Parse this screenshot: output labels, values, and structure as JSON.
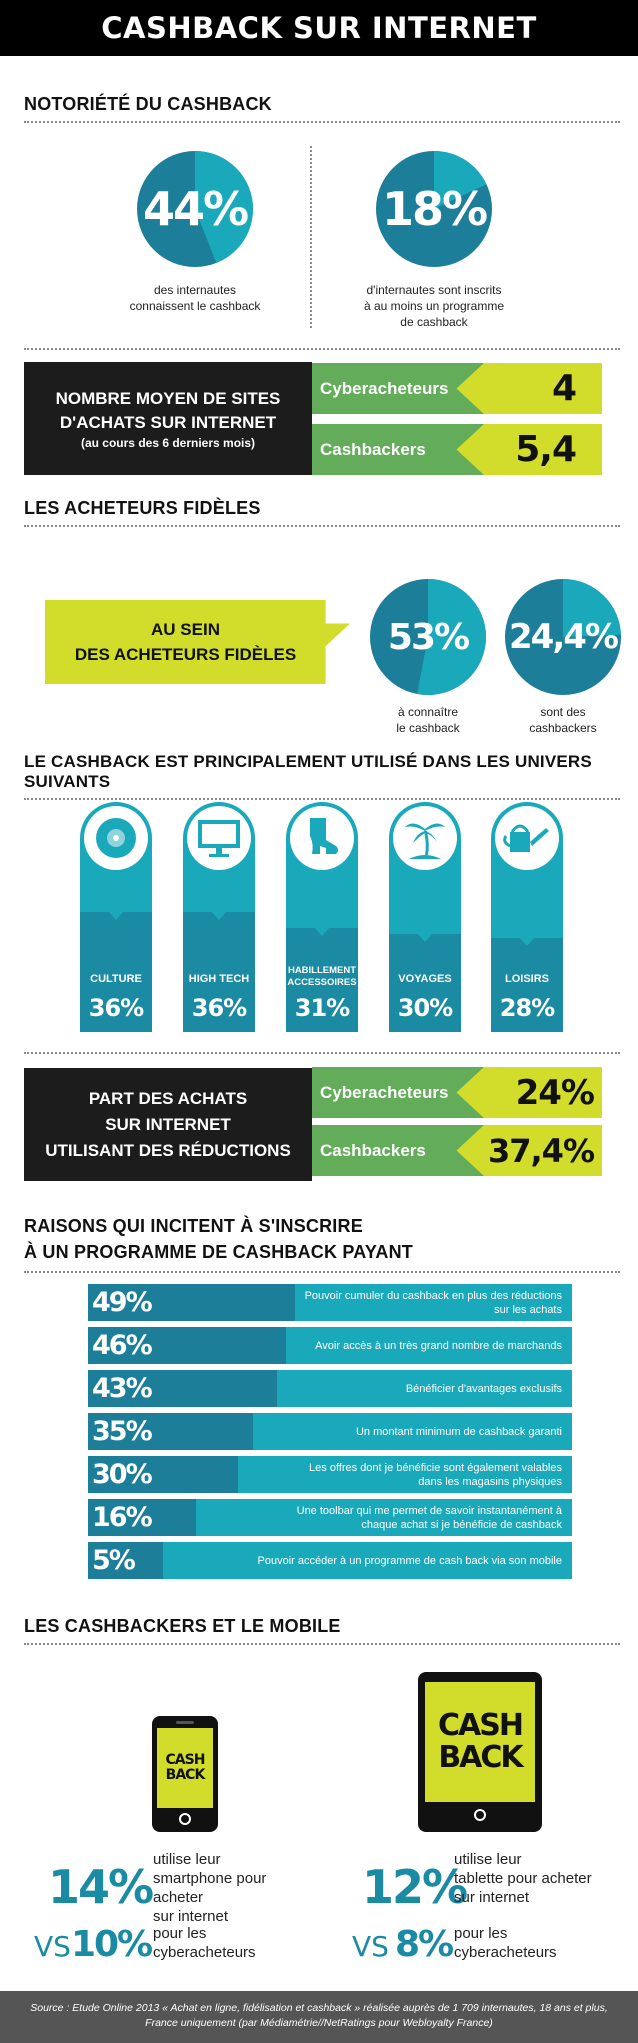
{
  "header": {
    "title": "CASHBACK SUR INTERNET"
  },
  "colors": {
    "teal_dark": "#1c7e98",
    "teal_light": "#1aa9bb",
    "lime": "#d2dc2a",
    "green": "#63ad5a",
    "black": "#1c1c1c"
  },
  "notoriete": {
    "title": "NOTORIÉTÉ DU CASHBACK",
    "left": {
      "value": "44%",
      "percent": 44,
      "line1": "des internautes",
      "line2": "connaissent le cashback"
    },
    "right": {
      "value": "18%",
      "percent": 18,
      "line1": "d'internautes sont inscrits",
      "line2": "à au moins un programme",
      "line3": "de cashback"
    }
  },
  "nombre_sites": {
    "line1": "NOMBRE MOYEN DE SITES",
    "line2": "D'ACHATS SUR INTERNET",
    "sub": "(au cours des 6 derniers mois)",
    "rows": [
      {
        "label": "Cyberacheteurs",
        "value": "4"
      },
      {
        "label": "Cashbackers",
        "value": "5,4"
      }
    ]
  },
  "fideles": {
    "title": "LES ACHETEURS FIDÈLES",
    "box_line1": "AU SEIN",
    "box_line2": "DES ACHETEURS FIDÈLES",
    "left": {
      "value": "53%",
      "percent": 53,
      "line1": "à connaître",
      "line2": "le cashback"
    },
    "right": {
      "value": "24,4%",
      "percent": 24.4,
      "line1": "sont des",
      "line2": "cashbackers"
    }
  },
  "univers": {
    "title": "LE CASHBACK EST PRINCIPALEMENT UTILISÉ DANS LES UNIVERS SUIVANTS",
    "items": [
      {
        "icon": "cd-icon",
        "label": "CULTURE",
        "value": "36%"
      },
      {
        "icon": "monitor-icon",
        "label": "HIGH TECH",
        "value": "36%"
      },
      {
        "icon": "boot-icon",
        "label": "HABILLEMENT ACCESSOIRES",
        "value": "31%"
      },
      {
        "icon": "palm-tree-icon",
        "label": "VOYAGES",
        "value": "30%"
      },
      {
        "icon": "watering-can-icon",
        "label": "LOISIRS",
        "value": "28%"
      }
    ]
  },
  "part_achats": {
    "line1": "PART DES ACHATS",
    "line2": "SUR INTERNET",
    "line3": "UTILISANT DES RÉDUCTIONS",
    "rows": [
      {
        "label": "Cyberacheteurs",
        "value": "24%"
      },
      {
        "label": "Cashbackers",
        "value": "37,4%"
      }
    ]
  },
  "raisons": {
    "title_line1": "RAISONS QUI INCITENT À S'INSCRIRE",
    "title_line2": "À UN PROGRAMME DE CASHBACK PAYANT",
    "items": [
      {
        "value": "49%",
        "percent": 49,
        "text": "Pouvoir cumuler du cashback en plus des réductions sur les achats"
      },
      {
        "value": "46%",
        "percent": 46,
        "text": "Avoir accès à un très grand nombre de marchands"
      },
      {
        "value": "43%",
        "percent": 43,
        "text": "Bénéficier d'avantages exclusifs"
      },
      {
        "value": "35%",
        "percent": 35,
        "text": "Un montant  minimum de cashback garanti"
      },
      {
        "value": "30%",
        "percent": 30,
        "text": "Les offres dont je bénéficie sont également valables dans les magasins physiques"
      },
      {
        "value": "16%",
        "percent": 16,
        "text": "Une toolbar qui me permet de savoir instantanément à chaque achat si je bénéficie de cashback"
      },
      {
        "value": "5%",
        "percent": 5,
        "text": "Pouvoir accéder à un programme de cash back via son mobile"
      }
    ]
  },
  "mobile": {
    "title": "LES CASHBACKERS ET LE MOBILE",
    "phone_screen_l1": "CASH",
    "phone_screen_l2": "BACK",
    "tablet_screen_l1": "CASH",
    "tablet_screen_l2": "BACK",
    "smartphone": {
      "value": "14%",
      "l1": "utilise leur",
      "l2": "smartphone pour acheter",
      "l3": "sur internet",
      "vs": "VS",
      "vs_value": "10%",
      "vs_l1": "pour les",
      "vs_l2": "cyberacheteurs"
    },
    "tablette": {
      "value": "12%",
      "l1": "utilise leur",
      "l2": "tablette pour acheter",
      "l3": "sur internet",
      "vs": "VS",
      "vs_value": "8%",
      "vs_l1": "pour les",
      "vs_l2": "cyberacheteurs"
    }
  },
  "footer": {
    "line1": "Source : Etude Online  2013 « Achat en ligne, fidélisation et cashback » réalisée auprès de  1 709 internautes, 18 ans et plus,",
    "line2": "France uniquement (par Médiamétrie//NetRatings pour Webloyalty France)"
  }
}
